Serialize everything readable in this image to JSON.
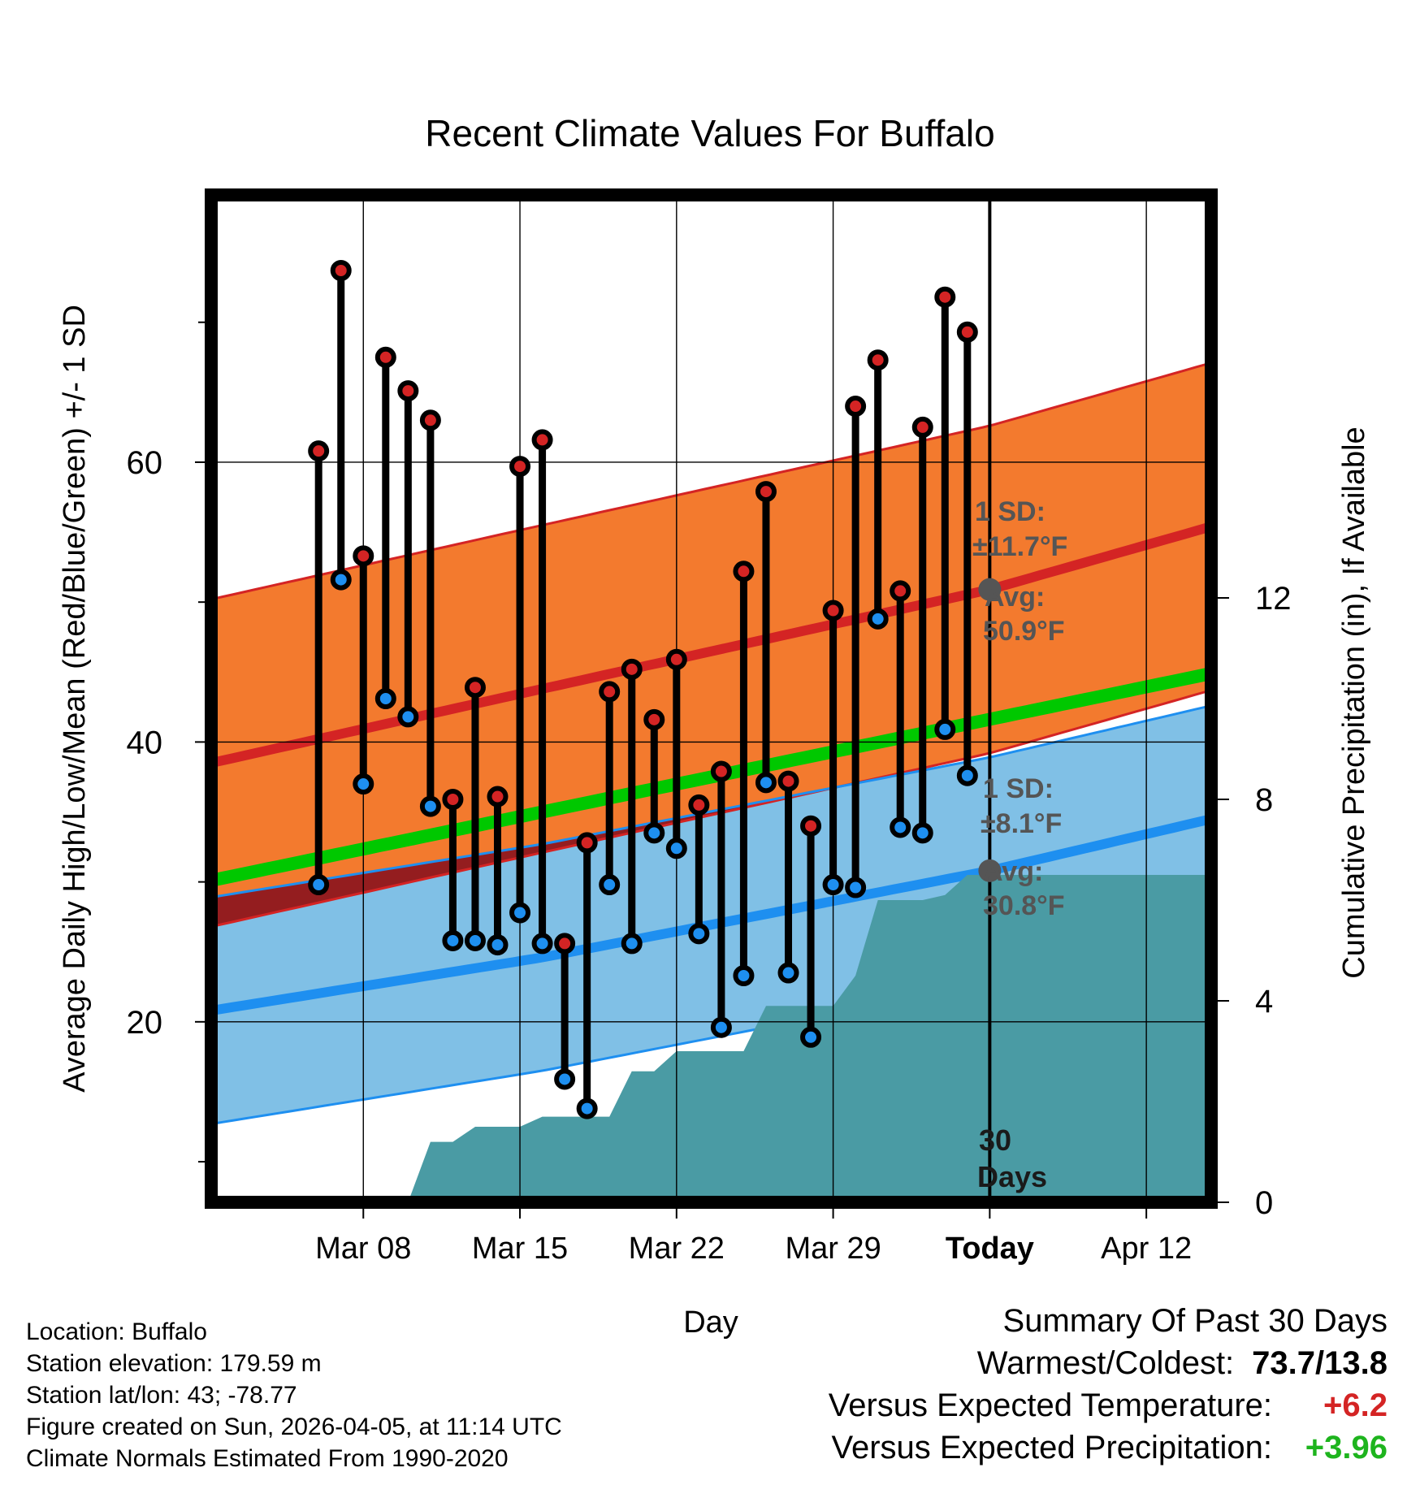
{
  "colors": {
    "high_band": "#F37A2E",
    "high_band_edge": "#D42424",
    "high_mean": "#D42424",
    "low_band": "#80C0E6",
    "low_band_edge": "#1E8FF0",
    "low_mean": "#1E8FF0",
    "overlap_band": "#951414",
    "mean_line": "#00C800",
    "precip_fill": "#4A9BA4",
    "high_marker": "#D42424",
    "low_marker": "#1E8FF0",
    "annotation_text": "#555555",
    "positive_temp": "#D42424",
    "positive_precip": "#1EB41E"
  },
  "chart_data": {
    "type": "line",
    "title": "Recent Climate Values For Buffalo",
    "xlabel": "Day",
    "ylabel": "Average Daily High/Low/Mean (Red/Blue/Green) +/- 1 SD",
    "y2label": "Cumulative Precipitation (in), If Available",
    "ylim": [
      7.1,
      79.1
    ],
    "y2lim": [
      0,
      20
    ],
    "xlim": [
      -34.8,
      9.9
    ],
    "x_unit": "days relative to today",
    "x_ticks": [
      -28,
      -21,
      -14,
      -7,
      0,
      7
    ],
    "x_tick_labels": [
      "Mar 08",
      "Mar 15",
      "Mar 22",
      "Mar 29",
      "Today",
      "Apr 12"
    ],
    "y_ticks": [
      20,
      40,
      60
    ],
    "y_minor_ticks": [
      10,
      30,
      50,
      70
    ],
    "y2_ticks": [
      0,
      4,
      8,
      12
    ],
    "grid": true,
    "normals": {
      "high": {
        "x": [
          -34.8,
          -20,
          0,
          9.9
        ],
        "mean": [
          38.5,
          43.8,
          50.9,
          55.4
        ],
        "sd": 11.7
      },
      "low": {
        "x": [
          -34.8,
          -20,
          0,
          9.9
        ],
        "mean": [
          20.8,
          24.6,
          30.8,
          34.5
        ],
        "sd": 8.1
      },
      "mean": {
        "x": [
          -34.8,
          9.9
        ],
        "values": [
          30.1,
          44.9
        ]
      }
    },
    "days": [
      -30,
      -29,
      -28,
      -27,
      -26,
      -25,
      -24,
      -23,
      -22,
      -21,
      -20,
      -19,
      -18,
      -17,
      -16,
      -15,
      -14,
      -13,
      -12,
      -11,
      -10,
      -9,
      -8,
      -7,
      -6,
      -5,
      -4,
      -3,
      -2,
      -1
    ],
    "highs": [
      60.8,
      73.7,
      53.3,
      67.5,
      65.1,
      63.0,
      35.9,
      43.9,
      36.1,
      59.7,
      61.6,
      25.6,
      32.8,
      43.6,
      45.2,
      41.6,
      45.9,
      35.5,
      37.9,
      52.2,
      57.9,
      37.2,
      34.0,
      49.4,
      64.0,
      67.3,
      50.8,
      62.5,
      71.8,
      69.3
    ],
    "lows": [
      29.8,
      51.6,
      37.0,
      43.1,
      41.8,
      35.4,
      25.8,
      25.8,
      25.5,
      27.8,
      25.6,
      15.9,
      13.8,
      29.8,
      25.6,
      33.5,
      32.4,
      26.3,
      19.6,
      23.3,
      37.1,
      23.5,
      18.9,
      29.8,
      29.6,
      48.8,
      33.9,
      33.5,
      40.9,
      37.6
    ],
    "precip_cumulative": {
      "x": [
        -26,
        -25,
        -24,
        -23,
        -22,
        -21,
        -20,
        -19,
        -18,
        -17,
        -16,
        -15,
        -14,
        -13,
        -12,
        -11,
        -10,
        -9,
        -8,
        -7,
        -6,
        -5,
        -4,
        -3,
        -2,
        -1,
        0,
        9.9
      ],
      "values": [
        0.0,
        1.2,
        1.2,
        1.5,
        1.5,
        1.5,
        1.7,
        1.7,
        1.7,
        1.7,
        2.6,
        2.6,
        3.0,
        3.0,
        3.0,
        3.0,
        3.9,
        3.9,
        3.9,
        3.9,
        4.5,
        6.0,
        6.0,
        6.0,
        6.1,
        6.5,
        6.5,
        6.5
      ]
    },
    "annotations": {
      "high_sd_label": "1 SD:",
      "high_sd_value": "±11.7°F",
      "high_avg_label": "Avg:",
      "high_avg_value": "50.9°F",
      "low_sd_label": "1 SD:",
      "low_sd_value": "±8.1°F",
      "low_avg_label": "Avg:",
      "low_avg_value": "30.8°F",
      "period_number": "30",
      "period_unit": "Days"
    }
  },
  "station": {
    "location": "Location: Buffalo",
    "elevation": "Station elevation: 179.59 m",
    "latlon": "Station lat/lon: 43; -78.77",
    "created": "Figure created on Sun, 2026-04-05, at 11:14 UTC",
    "normals": "Climate Normals Estimated From 1990-2020"
  },
  "summary": {
    "title": "Summary Of Past 30 Days",
    "warm_cold_label": "Warmest/Coldest:",
    "warm_cold_value": "73.7/13.8",
    "temp_label": "Versus Expected Temperature:",
    "temp_value": "+6.2",
    "precip_label": "Versus Expected Precipitation:",
    "precip_value": "+3.96"
  }
}
